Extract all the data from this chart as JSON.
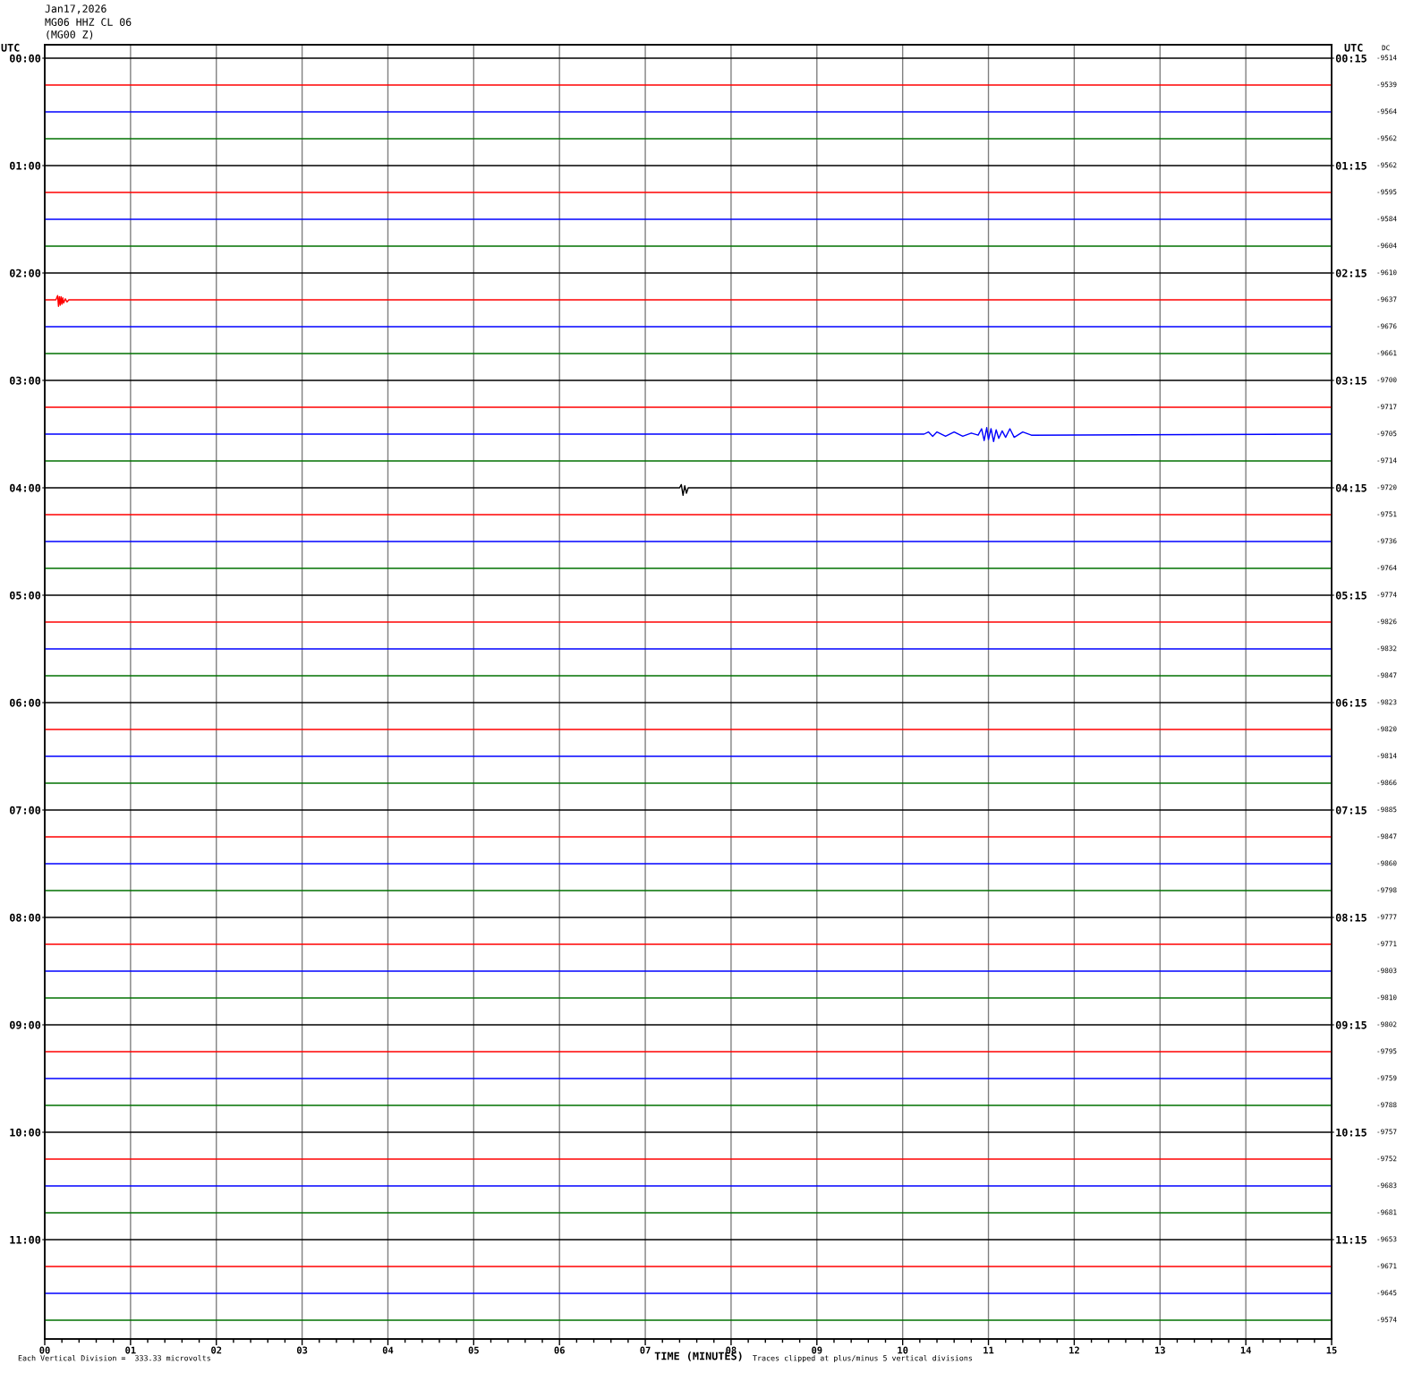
{
  "chart_data": {
    "type": "line",
    "title": "Jan17,2026",
    "subtitle": "MG06 HHZ CL 06\n(MG00 Z)",
    "xlabel": "TIME (MINUTES)",
    "ylabel": "UTC",
    "y2label": "UTC",
    "annotations": [
      "DC",
      "-9514",
      "-9539",
      "-9564",
      "-9562",
      "-9562",
      "-9595",
      "-9584",
      "-9604",
      "-9610",
      "-9637",
      "-9676",
      "-9661",
      "-9700",
      "-9717",
      "-9705",
      "-9714",
      "-9720",
      "-9751",
      "-9736",
      "-9764",
      "-9774",
      "-9826",
      "-9832",
      "-9847",
      "-9823",
      "-9820",
      "-9814",
      "-9866",
      "-9885",
      "-9847",
      "-9860",
      "-9798",
      "-9777",
      "-9771",
      "-9803",
      "-9810",
      "-9802",
      "-9795",
      "-9759",
      "-9788",
      "-9757",
      "-9752",
      "-9683",
      "-9681",
      "-9653",
      "-9671",
      "-9645",
      "-9574",
      "Each Vertical Division =  333.33 microvolts",
      "Traces clipped at plus/minus 5 vertical divisions"
    ],
    "xlim": [
      0,
      15
    ],
    "xticks": [
      {
        "value": 0,
        "label": "00"
      },
      {
        "value": 0.2,
        "label": null
      },
      {
        "value": 0.4,
        "label": null
      },
      {
        "value": 0.6,
        "label": null
      },
      {
        "value": 0.8,
        "label": null
      },
      {
        "value": 1,
        "label": "01"
      },
      {
        "value": 1.2,
        "label": null
      },
      {
        "value": 1.4,
        "label": null
      },
      {
        "value": 1.6,
        "label": null
      },
      {
        "value": 1.8,
        "label": null
      },
      {
        "value": 2,
        "label": "02"
      },
      {
        "value": 2.2,
        "label": null
      },
      {
        "value": 2.4,
        "label": null
      },
      {
        "value": 2.6,
        "label": null
      },
      {
        "value": 2.8,
        "label": null
      },
      {
        "value": 3,
        "label": "03"
      },
      {
        "value": 3.2,
        "label": null
      },
      {
        "value": 3.4,
        "label": null
      },
      {
        "value": 3.6,
        "label": null
      },
      {
        "value": 3.8,
        "label": null
      },
      {
        "value": 4,
        "label": "04"
      },
      {
        "value": 4.2,
        "label": null
      },
      {
        "value": 4.4,
        "label": null
      },
      {
        "value": 4.6,
        "label": null
      },
      {
        "value": 4.8,
        "label": null
      },
      {
        "value": 5,
        "label": "05"
      },
      {
        "value": 5.2,
        "label": null
      },
      {
        "value": 5.4,
        "label": null
      },
      {
        "value": 5.6,
        "label": null
      },
      {
        "value": 5.8,
        "label": null
      },
      {
        "value": 6,
        "label": "06"
      },
      {
        "value": 6.2,
        "label": null
      },
      {
        "value": 6.4,
        "label": null
      },
      {
        "value": 6.6,
        "label": null
      },
      {
        "value": 6.8,
        "label": null
      },
      {
        "value": 7,
        "label": "07"
      },
      {
        "value": 7.2,
        "label": null
      },
      {
        "value": 7.4,
        "label": null
      },
      {
        "value": 7.6,
        "label": null
      },
      {
        "value": 7.8,
        "label": null
      },
      {
        "value": 8,
        "label": "08"
      },
      {
        "value": 8.2,
        "label": null
      },
      {
        "value": 8.4,
        "label": null
      },
      {
        "value": 8.6,
        "label": null
      },
      {
        "value": 8.8,
        "label": null
      },
      {
        "value": 9,
        "label": "09"
      },
      {
        "value": 9.2,
        "label": null
      },
      {
        "value": 9.4,
        "label": null
      },
      {
        "value": 9.6,
        "label": null
      },
      {
        "value": 9.8,
        "label": null
      },
      {
        "value": 10,
        "label": "10"
      },
      {
        "value": 10.2,
        "label": null
      },
      {
        "value": 10.4,
        "label": null
      },
      {
        "value": 10.6,
        "label": null
      },
      {
        "value": 10.8,
        "label": null
      },
      {
        "value": 11,
        "label": "11"
      },
      {
        "value": 11.2,
        "label": null
      },
      {
        "value": 11.4,
        "label": null
      },
      {
        "value": 11.6,
        "label": null
      },
      {
        "value": 11.8,
        "label": null
      },
      {
        "value": 12,
        "label": "12"
      },
      {
        "value": 12.2,
        "label": null
      },
      {
        "value": 12.4,
        "label": null
      },
      {
        "value": 12.6,
        "label": null
      },
      {
        "value": 12.8,
        "label": null
      },
      {
        "value": 13,
        "label": "13"
      },
      {
        "value": 13.2,
        "label": null
      },
      {
        "value": 13.4,
        "label": null
      },
      {
        "value": 13.6,
        "label": null
      },
      {
        "value": 13.8,
        "label": null
      },
      {
        "value": 14,
        "label": "14"
      },
      {
        "value": 14.2,
        "label": null
      },
      {
        "value": 14.4,
        "label": null
      },
      {
        "value": 14.6,
        "label": null
      },
      {
        "value": 14.8,
        "label": null
      },
      {
        "value": 15,
        "label": "15"
      }
    ],
    "ylim": [
      11.925,
      -0.125
    ],
    "yticks": [
      {
        "value": 0,
        "label": "00:00"
      },
      {
        "value": 1,
        "label": "01:00"
      },
      {
        "value": 2,
        "label": "02:00"
      },
      {
        "value": 3,
        "label": "03:00"
      },
      {
        "value": 4,
        "label": "04:00"
      },
      {
        "value": 5,
        "label": "05:00"
      },
      {
        "value": 6,
        "label": "06:00"
      },
      {
        "value": 7,
        "label": "07:00"
      },
      {
        "value": 8,
        "label": "08:00"
      },
      {
        "value": 9,
        "label": "09:00"
      },
      {
        "value": 10,
        "label": "10:00"
      },
      {
        "value": 11,
        "label": "11:00"
      }
    ],
    "y2lim": [
      12.175,
      0.125
    ],
    "y2ticks": [
      {
        "value": 0.25,
        "label": "00:15"
      },
      {
        "value": 1.25,
        "label": "01:15"
      },
      {
        "value": 2.25,
        "label": "02:15"
      },
      {
        "value": 3.25,
        "label": "03:15"
      },
      {
        "value": 4.25,
        "label": "04:15"
      },
      {
        "value": 5.25,
        "label": "05:15"
      },
      {
        "value": 6.25,
        "label": "06:15"
      },
      {
        "value": 7.25,
        "label": "07:15"
      },
      {
        "value": 8.25,
        "label": "08:15"
      },
      {
        "value": 9.25,
        "label": "09:15"
      },
      {
        "value": 10.25,
        "label": "10:15"
      },
      {
        "value": 11.25,
        "label": "11:15"
      }
    ],
    "grid": "x",
    "series": [
      {
        "color": "#000000",
        "x": [
          0,
          15
        ],
        "values": [
          0,
          0
        ]
      },
      {
        "color": "#ff0000",
        "x": [
          0,
          15
        ],
        "values": [
          0.25,
          0.25
        ]
      },
      {
        "color": "#0000ff",
        "x": [
          0,
          15
        ],
        "values": [
          0.5,
          0.5
        ]
      },
      {
        "color": "#007000",
        "x": [
          0,
          15
        ],
        "values": [
          0.75,
          0.75
        ]
      },
      {
        "color": "#000000",
        "x": [
          0,
          15
        ],
        "values": [
          1,
          1
        ]
      },
      {
        "color": "#ff0000",
        "x": [
          0,
          15
        ],
        "values": [
          1.25,
          1.25
        ]
      },
      {
        "color": "#0000ff",
        "x": [
          0,
          15
        ],
        "values": [
          1.5,
          1.5
        ]
      },
      {
        "color": "#007000",
        "x": [
          0,
          15
        ],
        "values": [
          1.75,
          1.75
        ]
      },
      {
        "color": "#000000",
        "x": [
          0,
          15
        ],
        "values": [
          2,
          2
        ]
      },
      {
        "color": "#ff0000",
        "x": [
          0,
          0.13,
          0.15,
          0.16,
          0.17,
          0.18,
          0.19,
          0.2,
          0.21,
          0.22,
          0.24,
          0.26,
          0.28,
          15
        ],
        "values": [
          2.25,
          2.25,
          2.21,
          2.31,
          2.22,
          2.3,
          2.22,
          2.29,
          2.23,
          2.28,
          2.24,
          2.27,
          2.25,
          2.25
        ]
      },
      {
        "color": "#0000ff",
        "x": [
          0,
          15
        ],
        "values": [
          2.5,
          2.5
        ]
      },
      {
        "color": "#007000",
        "x": [
          0,
          15
        ],
        "values": [
          2.75,
          2.75
        ]
      },
      {
        "color": "#000000",
        "x": [
          0,
          15
        ],
        "values": [
          3,
          3
        ]
      },
      {
        "color": "#ff0000",
        "x": [
          0,
          15
        ],
        "values": [
          3.25,
          3.25
        ]
      },
      {
        "color": "#0000ff",
        "x": [
          0,
          10.25,
          10.3,
          10.35,
          10.4,
          10.5,
          10.6,
          10.7,
          10.8,
          10.88,
          10.92,
          10.95,
          10.98,
          11.0,
          11.03,
          11.06,
          11.09,
          11.12,
          11.16,
          11.2,
          11.25,
          11.3,
          11.4,
          11.5,
          15
        ],
        "values": [
          3.5,
          3.5,
          3.48,
          3.52,
          3.48,
          3.52,
          3.48,
          3.52,
          3.49,
          3.51,
          3.45,
          3.56,
          3.44,
          3.55,
          3.45,
          3.57,
          3.46,
          3.54,
          3.47,
          3.53,
          3.45,
          3.53,
          3.48,
          3.51,
          3.5
        ]
      },
      {
        "color": "#007000",
        "x": [
          0,
          15
        ],
        "values": [
          3.75,
          3.75
        ]
      },
      {
        "color": "#000000",
        "x": [
          0,
          7.4,
          7.42,
          7.44,
          7.46,
          7.48,
          7.5,
          15
        ],
        "values": [
          4,
          4,
          3.97,
          4.07,
          3.98,
          4.05,
          4,
          4
        ]
      },
      {
        "color": "#ff0000",
        "x": [
          0,
          15
        ],
        "values": [
          4.25,
          4.25
        ]
      },
      {
        "color": "#0000ff",
        "x": [
          0,
          15
        ],
        "values": [
          4.5,
          4.5
        ]
      },
      {
        "color": "#007000",
        "x": [
          0,
          15
        ],
        "values": [
          4.75,
          4.75
        ]
      },
      {
        "color": "#000000",
        "x": [
          0,
          15
        ],
        "values": [
          5,
          5
        ]
      },
      {
        "color": "#ff0000",
        "x": [
          0,
          15
        ],
        "values": [
          5.25,
          5.25
        ]
      },
      {
        "color": "#0000ff",
        "x": [
          0,
          15
        ],
        "values": [
          5.5,
          5.5
        ]
      },
      {
        "color": "#007000",
        "x": [
          0,
          15
        ],
        "values": [
          5.75,
          5.75
        ]
      },
      {
        "color": "#000000",
        "x": [
          0,
          15
        ],
        "values": [
          6,
          6
        ]
      },
      {
        "color": "#ff0000",
        "x": [
          0,
          15
        ],
        "values": [
          6.25,
          6.25
        ]
      },
      {
        "color": "#0000ff",
        "x": [
          0,
          15
        ],
        "values": [
          6.5,
          6.5
        ]
      },
      {
        "color": "#007000",
        "x": [
          0,
          15
        ],
        "values": [
          6.75,
          6.75
        ]
      },
      {
        "color": "#000000",
        "x": [
          0,
          15
        ],
        "values": [
          7,
          7
        ]
      },
      {
        "color": "#ff0000",
        "x": [
          0,
          15
        ],
        "values": [
          7.25,
          7.25
        ]
      },
      {
        "color": "#0000ff",
        "x": [
          0,
          15
        ],
        "values": [
          7.5,
          7.5
        ]
      },
      {
        "color": "#007000",
        "x": [
          0,
          15
        ],
        "values": [
          7.75,
          7.75
        ]
      },
      {
        "color": "#000000",
        "x": [
          0,
          15
        ],
        "values": [
          8,
          8
        ]
      },
      {
        "color": "#ff0000",
        "x": [
          0,
          15
        ],
        "values": [
          8.25,
          8.25
        ]
      },
      {
        "color": "#0000ff",
        "x": [
          0,
          15
        ],
        "values": [
          8.5,
          8.5
        ]
      },
      {
        "color": "#007000",
        "x": [
          0,
          15
        ],
        "values": [
          8.75,
          8.75
        ]
      },
      {
        "color": "#000000",
        "x": [
          0,
          15
        ],
        "values": [
          9,
          9
        ]
      },
      {
        "color": "#ff0000",
        "x": [
          0,
          15
        ],
        "values": [
          9.25,
          9.25
        ]
      },
      {
        "color": "#0000ff",
        "x": [
          0,
          15
        ],
        "values": [
          9.5,
          9.5
        ]
      },
      {
        "color": "#007000",
        "x": [
          0,
          15
        ],
        "values": [
          9.75,
          9.75
        ]
      },
      {
        "color": "#000000",
        "x": [
          0,
          15
        ],
        "values": [
          10,
          10
        ]
      },
      {
        "color": "#ff0000",
        "x": [
          0,
          15
        ],
        "values": [
          10.25,
          10.25
        ]
      },
      {
        "color": "#0000ff",
        "x": [
          0,
          15
        ],
        "values": [
          10.5,
          10.5
        ]
      },
      {
        "color": "#007000",
        "x": [
          0,
          15
        ],
        "values": [
          10.75,
          10.75
        ]
      },
      {
        "color": "#000000",
        "x": [
          0,
          15
        ],
        "values": [
          11,
          11
        ]
      },
      {
        "color": "#ff0000",
        "x": [
          0,
          15
        ],
        "values": [
          11.25,
          11.25
        ]
      },
      {
        "color": "#0000ff",
        "x": [
          0,
          15
        ],
        "values": [
          11.5,
          11.5
        ]
      },
      {
        "color": "#007000",
        "x": [
          0,
          15
        ],
        "values": [
          11.75,
          11.75
        ]
      }
    ]
  }
}
